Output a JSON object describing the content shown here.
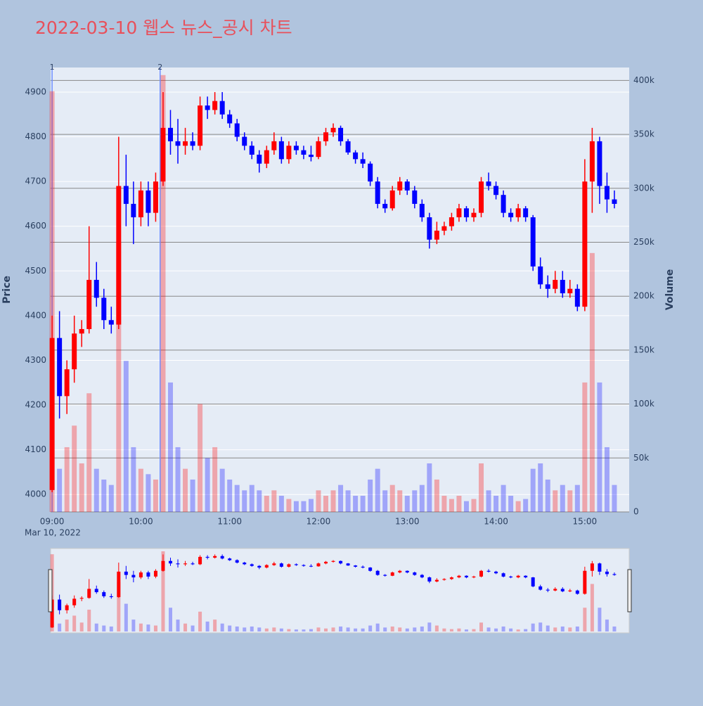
{
  "chart_data": {
    "type": "candlestick",
    "title": "2022-03-10 웹스 뉴스_공시 차트",
    "y_label": "Price",
    "y2_label": "Volume",
    "x_date_label": "Mar 10, 2022",
    "increasing_color": "#ff0000",
    "decreasing_color": "#0000ff",
    "x": [
      "09:00",
      "09:05",
      "09:10",
      "09:15",
      "09:20",
      "09:25",
      "09:30",
      "09:35",
      "09:40",
      "09:45",
      "09:50",
      "09:55",
      "10:00",
      "10:05",
      "10:10",
      "10:15",
      "10:20",
      "10:25",
      "10:30",
      "10:35",
      "10:40",
      "10:45",
      "10:50",
      "10:55",
      "11:00",
      "11:05",
      "11:10",
      "11:15",
      "11:20",
      "11:25",
      "11:30",
      "11:35",
      "11:40",
      "11:45",
      "11:50",
      "11:55",
      "12:00",
      "12:05",
      "12:10",
      "12:15",
      "12:20",
      "12:25",
      "12:30",
      "12:35",
      "12:40",
      "12:45",
      "12:50",
      "12:55",
      "13:00",
      "13:05",
      "13:10",
      "13:15",
      "13:20",
      "13:25",
      "13:30",
      "13:35",
      "13:40",
      "13:45",
      "13:50",
      "13:55",
      "14:00",
      "14:05",
      "14:10",
      "14:15",
      "14:20",
      "14:25",
      "14:30",
      "14:35",
      "14:40",
      "14:45",
      "14:50",
      "14:55",
      "15:00",
      "15:05",
      "15:10",
      "15:15",
      "15:20"
    ],
    "open": [
      4010,
      4350,
      4220,
      4280,
      4360,
      4370,
      4480,
      4440,
      4390,
      4380,
      4690,
      4650,
      4620,
      4680,
      4630,
      4700,
      4820,
      4790,
      4780,
      4790,
      4780,
      4870,
      4860,
      4880,
      4850,
      4830,
      4800,
      4780,
      4760,
      4740,
      4770,
      4790,
      4750,
      4780,
      4770,
      4760,
      4755,
      4790,
      4810,
      4820,
      4790,
      4765,
      4750,
      4740,
      4700,
      4650,
      4640,
      4680,
      4700,
      4680,
      4650,
      4620,
      4570,
      4590,
      4600,
      4620,
      4640,
      4620,
      4630,
      4700,
      4690,
      4670,
      4630,
      4620,
      4640,
      4620,
      4510,
      4470,
      4460,
      4480,
      4450,
      4460,
      4420,
      4700,
      4790,
      4690,
      4660
    ],
    "high": [
      4400,
      4410,
      4300,
      4400,
      4390,
      4600,
      4520,
      4460,
      4420,
      4800,
      4760,
      4700,
      4700,
      4700,
      4720,
      4900,
      4860,
      4840,
      4820,
      4810,
      4890,
      4890,
      4900,
      4900,
      4860,
      4840,
      4810,
      4790,
      4770,
      4780,
      4810,
      4800,
      4790,
      4790,
      4780,
      4780,
      4800,
      4820,
      4830,
      4825,
      4795,
      4770,
      4765,
      4745,
      4710,
      4660,
      4690,
      4710,
      4705,
      4690,
      4660,
      4630,
      4610,
      4610,
      4630,
      4650,
      4645,
      4640,
      4710,
      4720,
      4700,
      4680,
      4640,
      4650,
      4645,
      4625,
      4530,
      4490,
      4500,
      4500,
      4480,
      4470,
      4750,
      4820,
      4800,
      4720,
      4680
    ],
    "low": [
      4005,
      4170,
      4180,
      4250,
      4330,
      4360,
      4420,
      4370,
      4360,
      4370,
      4600,
      4560,
      4600,
      4600,
      4610,
      4690,
      4760,
      4740,
      4760,
      4770,
      4770,
      4840,
      4850,
      4840,
      4820,
      4790,
      4770,
      4750,
      4720,
      4730,
      4760,
      4740,
      4740,
      4760,
      4750,
      4745,
      4750,
      4780,
      4800,
      4780,
      4760,
      4740,
      4730,
      4690,
      4640,
      4630,
      4635,
      4670,
      4670,
      4640,
      4610,
      4550,
      4560,
      4580,
      4590,
      4610,
      4610,
      4610,
      4620,
      4680,
      4660,
      4620,
      4610,
      4610,
      4610,
      4500,
      4460,
      4440,
      4450,
      4440,
      4440,
      4410,
      4410,
      4630,
      4650,
      4630,
      4640
    ],
    "close": [
      4350,
      4220,
      4280,
      4360,
      4370,
      4480,
      4440,
      4390,
      4380,
      4690,
      4650,
      4620,
      4680,
      4630,
      4700,
      4820,
      4790,
      4780,
      4790,
      4780,
      4870,
      4860,
      4880,
      4850,
      4830,
      4800,
      4780,
      4760,
      4740,
      4770,
      4790,
      4750,
      4780,
      4770,
      4760,
      4755,
      4790,
      4810,
      4820,
      4790,
      4765,
      4750,
      4740,
      4700,
      4650,
      4640,
      4680,
      4700,
      4680,
      4650,
      4620,
      4570,
      4590,
      4600,
      4620,
      4640,
      4620,
      4630,
      4700,
      4690,
      4670,
      4630,
      4620,
      4640,
      4620,
      4510,
      4470,
      4460,
      4480,
      4450,
      4460,
      4420,
      4700,
      4790,
      4690,
      4660,
      4650
    ],
    "volume": [
      390000,
      40000,
      60000,
      80000,
      45000,
      110000,
      40000,
      30000,
      25000,
      250000,
      140000,
      60000,
      40000,
      35000,
      30000,
      405000,
      120000,
      60000,
      40000,
      30000,
      100000,
      50000,
      60000,
      40000,
      30000,
      25000,
      20000,
      25000,
      20000,
      15000,
      20000,
      15000,
      12000,
      10000,
      10000,
      12000,
      20000,
      15000,
      20000,
      25000,
      20000,
      15000,
      15000,
      30000,
      40000,
      20000,
      25000,
      20000,
      15000,
      20000,
      25000,
      45000,
      30000,
      15000,
      12000,
      15000,
      10000,
      12000,
      45000,
      20000,
      15000,
      25000,
      15000,
      10000,
      12000,
      40000,
      45000,
      30000,
      20000,
      25000,
      20000,
      25000,
      120000,
      240000,
      120000,
      60000,
      25000
    ],
    "xlim": [
      "08:59",
      "15:30"
    ],
    "xticks": [
      "09:00",
      "10:00",
      "11:00",
      "12:00",
      "13:00",
      "14:00",
      "15:00"
    ],
    "ylim": [
      3961,
      4955
    ],
    "yticks": [
      4000,
      4100,
      4200,
      4300,
      4400,
      4500,
      4600,
      4700,
      4800,
      4900
    ],
    "y2lim": [
      0,
      412000
    ],
    "y2ticks": [
      0,
      {
        "value": 50000,
        "label": "50k"
      },
      {
        "value": 100000,
        "label": "100k"
      },
      {
        "value": 150000,
        "label": "150k"
      },
      {
        "value": 200000,
        "label": "200k"
      },
      {
        "value": 250000,
        "label": "250k"
      },
      {
        "value": 300000,
        "label": "300k"
      },
      {
        "value": 350000,
        "label": "350k"
      },
      {
        "value": 400000,
        "label": "400k"
      }
    ],
    "annotations": [
      {
        "x": "09:00",
        "text": "1"
      },
      {
        "x": "10:13",
        "text": "2"
      }
    ]
  }
}
